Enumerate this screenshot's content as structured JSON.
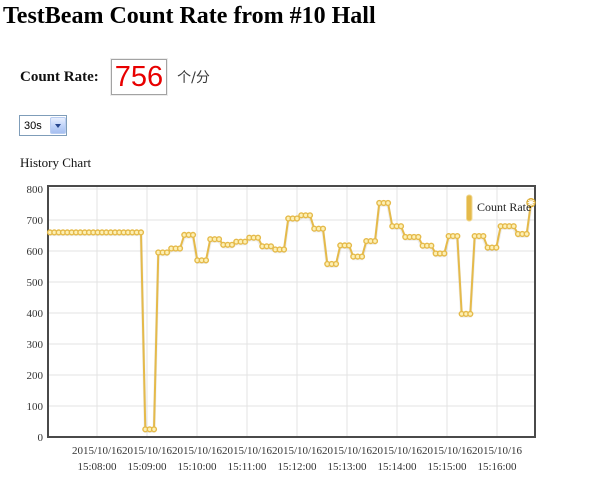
{
  "header": {
    "title": "TestBeam Count Rate from #10 Hall"
  },
  "count_rate": {
    "label": "Count Rate:",
    "value": "756",
    "unit": "个/分"
  },
  "interval_select": {
    "value": "30s"
  },
  "section": {
    "history_chart_label": "History Chart"
  },
  "colors": {
    "accent_red": "#e80000",
    "series_gold": "#e5ba4a"
  },
  "chart_data": {
    "type": "line",
    "series_name": "Count Rate",
    "legend_position": "top-right",
    "grid": true,
    "ylim": [
      0,
      800
    ],
    "y_ticks": [
      0,
      100,
      200,
      300,
      400,
      500,
      600,
      700,
      800
    ],
    "x_tick_date": "2015/10/16",
    "x_ticks": [
      "15:08:00",
      "15:09:00",
      "15:10:00",
      "15:11:00",
      "15:12:00",
      "15:13:00",
      "15:14:00",
      "15:15:00",
      "15:16:00"
    ],
    "colors": {
      "line": "#e5ba4a",
      "marker_fill": "#fdf0b5",
      "grid": "#e3e3e3",
      "border": "#4a4a4a"
    },
    "values": [
      660,
      660,
      660,
      660,
      660,
      660,
      660,
      660,
      660,
      660,
      660,
      660,
      660,
      660,
      660,
      660,
      660,
      660,
      660,
      660,
      660,
      660,
      25,
      25,
      25,
      595,
      595,
      595,
      608,
      608,
      608,
      652,
      652,
      652,
      570,
      570,
      570,
      638,
      638,
      638,
      620,
      620,
      620,
      630,
      630,
      630,
      643,
      643,
      643,
      615,
      615,
      615,
      605,
      605,
      605,
      705,
      705,
      705,
      715,
      715,
      715,
      672,
      672,
      672,
      558,
      558,
      558,
      618,
      618,
      618,
      582,
      582,
      582,
      632,
      632,
      632,
      755,
      755,
      755,
      680,
      680,
      680,
      645,
      645,
      645,
      645,
      617,
      617,
      617,
      592,
      592,
      592,
      648,
      648,
      648,
      397,
      397,
      397,
      648,
      648,
      648,
      611,
      611,
      611,
      680,
      680,
      680,
      680,
      655,
      655,
      655,
      756
    ]
  }
}
